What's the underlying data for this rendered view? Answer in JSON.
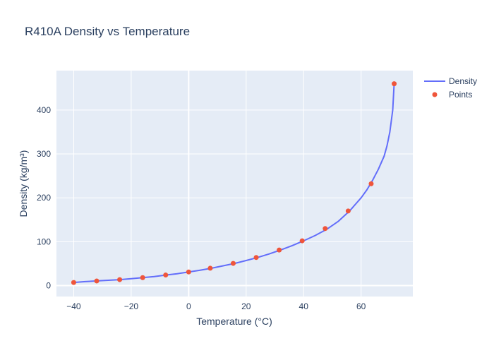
{
  "chart_data": {
    "type": "line",
    "title": "R410A Density vs Temperature",
    "xlabel": "Temperature (°C)",
    "ylabel": "Density (kg/m³)",
    "xlim": [
      -46,
      78
    ],
    "ylim": [
      -25,
      490
    ],
    "x_ticks": [
      -40,
      -20,
      0,
      20,
      40,
      60
    ],
    "y_ticks": [
      0,
      100,
      200,
      300,
      400
    ],
    "x_tick_labels": [
      "−40",
      "−20",
      "0",
      "20",
      "40",
      "60"
    ],
    "y_tick_labels": [
      "0",
      "100",
      "200",
      "300",
      "400"
    ],
    "grid": true,
    "legend_position": "top-right",
    "colors": {
      "plot_bg": "#e5ecf6",
      "grid": "#ffffff",
      "line": "#636efa",
      "points": "#ef553b",
      "text": "#2a3f5f"
    },
    "series": [
      {
        "name": "Density",
        "mode": "line",
        "x": [
          -40,
          -36,
          -32,
          -28,
          -24,
          -20,
          -16,
          -12,
          -8,
          -4,
          0,
          4,
          8,
          12,
          16,
          20,
          24,
          28,
          32,
          36,
          40,
          44,
          48,
          52,
          56,
          60,
          62,
          64,
          66,
          68,
          69,
          70,
          71,
          71.5
        ],
        "y": [
          7,
          9,
          10.5,
          12,
          13.5,
          15.5,
          18,
          20.5,
          24,
          27,
          31,
          35,
          39.5,
          45,
          50.5,
          57,
          64,
          72,
          81,
          91,
          102,
          114,
          128,
          146,
          170,
          200,
          218,
          240,
          265,
          295,
          318,
          350,
          400,
          460
        ]
      },
      {
        "name": "Points",
        "mode": "markers",
        "x": [
          -40,
          -32,
          -24,
          -16,
          -8,
          0,
          7.5,
          15.5,
          23.5,
          31.5,
          39.5,
          47.5,
          55.5,
          63.5,
          71.5
        ],
        "y": [
          7,
          10.5,
          13.5,
          18,
          24,
          31,
          39.5,
          50.5,
          64,
          81,
          102,
          130,
          170,
          232,
          460
        ]
      }
    ]
  }
}
